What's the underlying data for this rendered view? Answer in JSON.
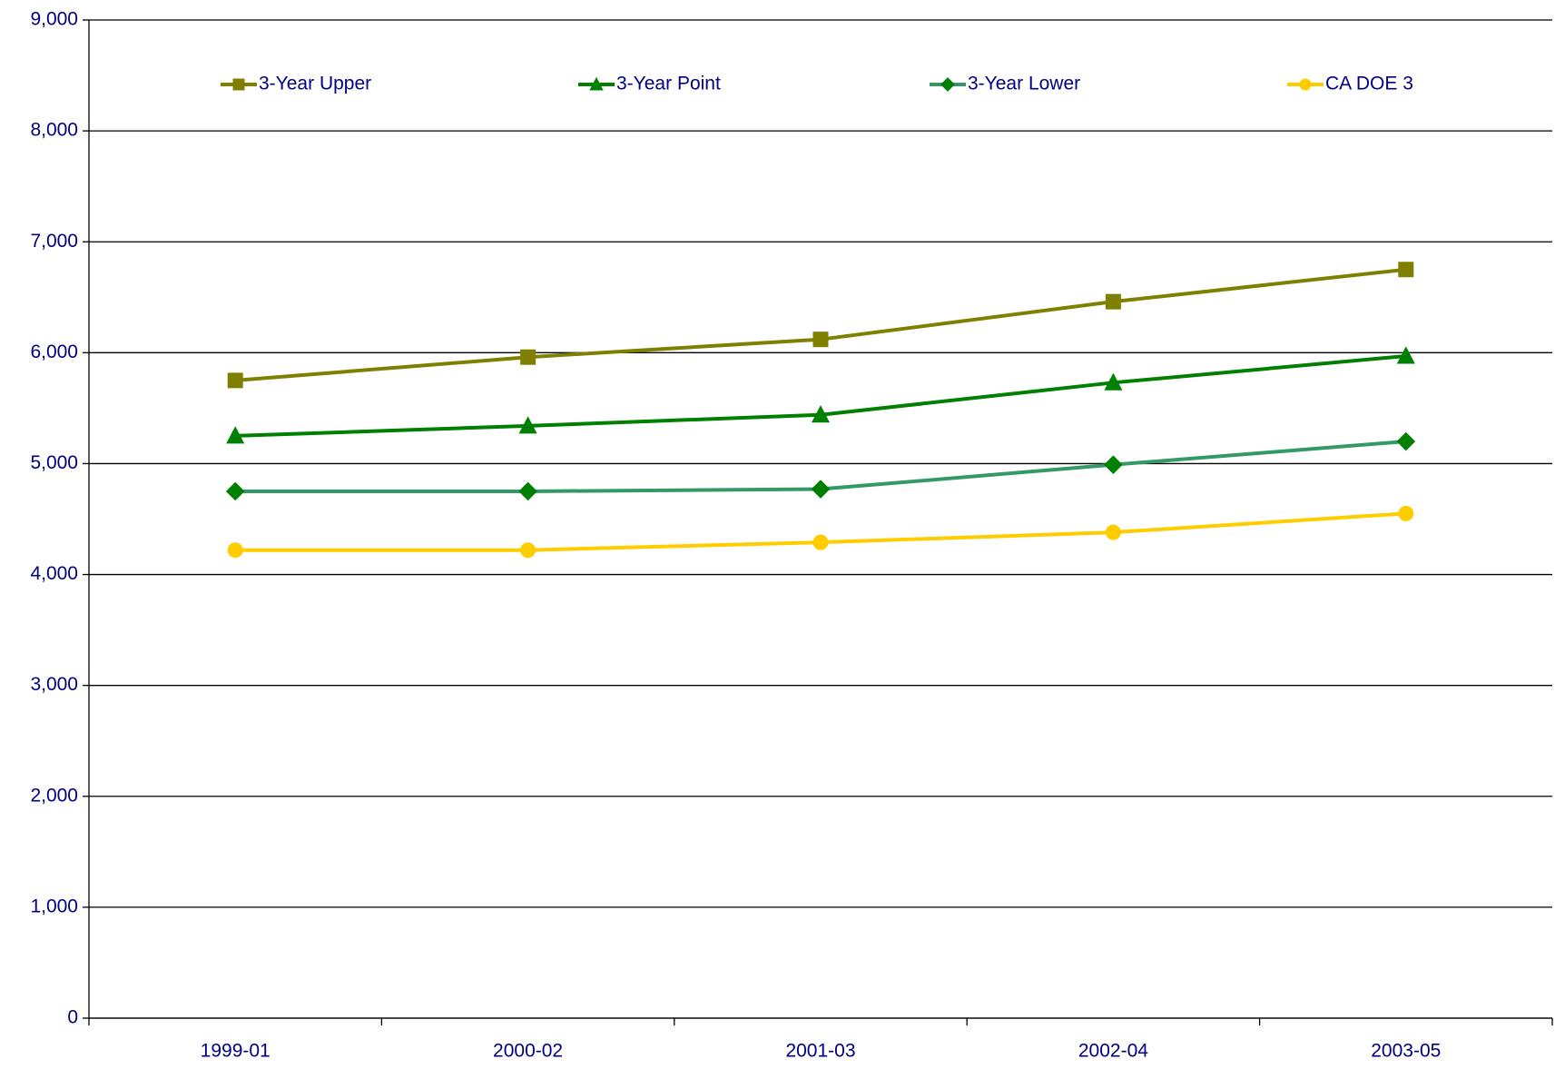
{
  "chart_data": {
    "type": "line",
    "categories": [
      "1999-01",
      "2000-02",
      "2001-03",
      "2002-04",
      "2003-05"
    ],
    "series": [
      {
        "name": "3-Year Upper",
        "color": "#808000",
        "marker": "square",
        "values": [
          5750,
          5960,
          6120,
          6460,
          6750
        ]
      },
      {
        "name": "3-Year Point",
        "color": "#008000",
        "marker": "triangle",
        "values": [
          5250,
          5340,
          5440,
          5730,
          5970
        ]
      },
      {
        "name": "3-Year Lower",
        "color": "#339966",
        "marker_color": "#008000",
        "marker": "diamond",
        "values": [
          4750,
          4750,
          4770,
          4990,
          5200
        ]
      },
      {
        "name": "CA DOE 3",
        "color": "#FFCC00",
        "marker": "circle",
        "values": [
          4220,
          4220,
          4290,
          4380,
          4550
        ]
      }
    ],
    "ylim": [
      0,
      9000
    ],
    "yticks": [
      {
        "value": 0,
        "label": "0"
      },
      {
        "value": 1000,
        "label": "1,000"
      },
      {
        "value": 2000,
        "label": "2,000"
      },
      {
        "value": 3000,
        "label": "3,000"
      },
      {
        "value": 4000,
        "label": "4,000"
      },
      {
        "value": 5000,
        "label": "5,000"
      },
      {
        "value": 6000,
        "label": "6,000"
      },
      {
        "value": 7000,
        "label": "7,000"
      },
      {
        "value": 8000,
        "label": "8,000"
      },
      {
        "value": 9000,
        "label": "9,000"
      }
    ],
    "grid": true,
    "legend": "top"
  }
}
